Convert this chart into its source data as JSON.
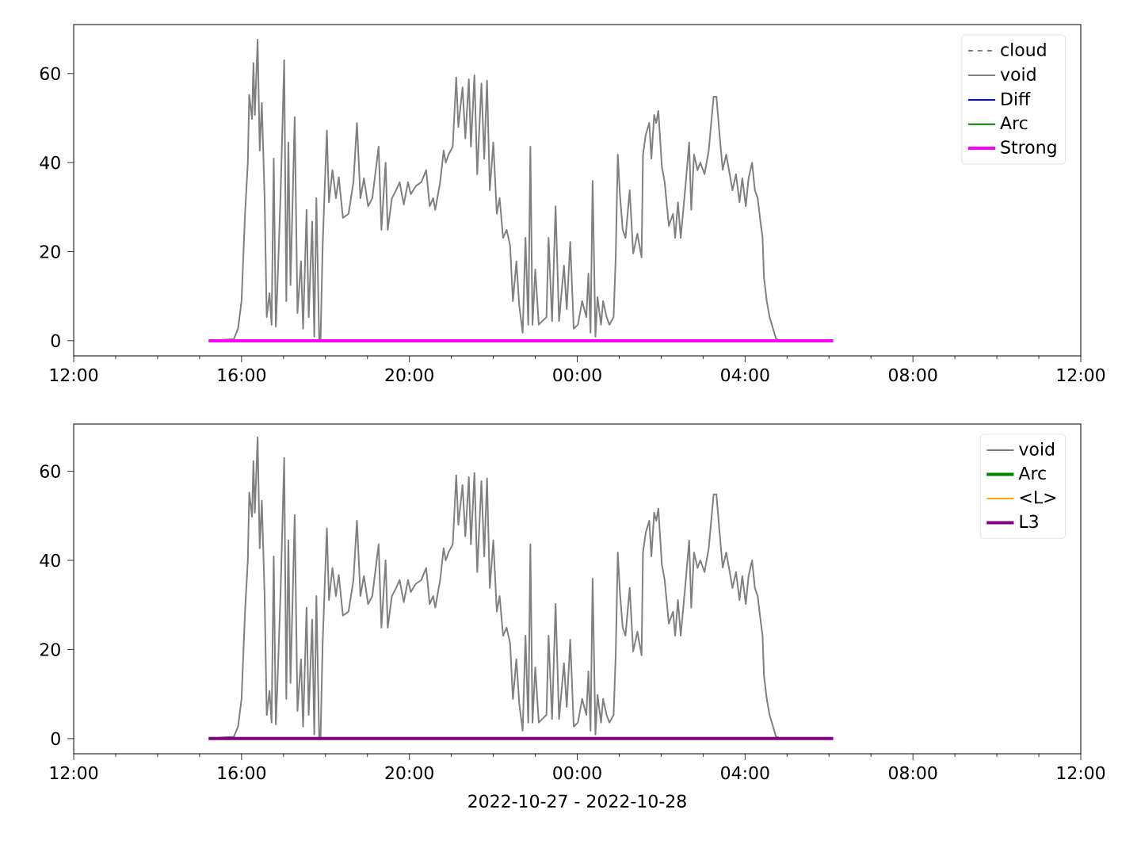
{
  "chart_data": [
    {
      "type": "line",
      "xlim": [
        "2022-10-27T12:00",
        "2022-10-28T12:00"
      ],
      "ylim": [
        -3.4,
        71
      ],
      "yticks": [
        0,
        20,
        40,
        60
      ],
      "xticks": [
        {
          "value": "2022-10-27T12:00",
          "label": "12:00"
        },
        {
          "value": "2022-10-27T16:00",
          "label": "16:00"
        },
        {
          "value": "2022-10-27T20:00",
          "label": "20:00"
        },
        {
          "value": "2022-10-28T00:00",
          "label": "00:00"
        },
        {
          "value": "2022-10-28T04:00",
          "label": "04:00"
        },
        {
          "value": "2022-10-28T08:00",
          "label": "08:00"
        },
        {
          "value": "2022-10-28T12:00",
          "label": "12:00"
        }
      ],
      "legend": "top right",
      "series": [
        {
          "name": "cloud",
          "color": "#808080",
          "line_style": "dashed"
        },
        {
          "name": "void",
          "color": "#808080",
          "x": [
            "2022-10-27T15:13",
            "2022-10-27T15:49",
            "2022-10-27T15:55",
            "2022-10-27T16:00",
            "2022-10-27T16:05",
            "2022-10-27T16:09",
            "2022-10-27T16:11",
            "2022-10-27T16:15",
            "2022-10-27T16:17",
            "2022-10-27T16:19",
            "2022-10-27T16:23",
            "2022-10-27T16:26",
            "2022-10-27T16:29",
            "2022-10-27T16:33",
            "2022-10-27T16:36",
            "2022-10-27T16:40",
            "2022-10-27T16:43",
            "2022-10-27T16:46",
            "2022-10-27T16:49",
            "2022-10-27T16:51",
            "2022-10-27T16:56",
            "2022-10-27T17:01",
            "2022-10-27T17:04",
            "2022-10-27T17:07",
            "2022-10-27T17:10",
            "2022-10-27T17:16",
            "2022-10-27T17:20",
            "2022-10-27T17:25",
            "2022-10-27T17:28",
            "2022-10-27T17:33",
            "2022-10-27T17:36",
            "2022-10-27T17:41",
            "2022-10-27T17:44",
            "2022-10-27T17:47",
            "2022-10-27T17:51",
            "2022-10-27T17:53",
            "2022-10-27T17:56",
            "2022-10-27T17:59",
            "2022-10-27T18:02",
            "2022-10-27T18:05",
            "2022-10-27T18:10",
            "2022-10-27T18:15",
            "2022-10-27T18:19",
            "2022-10-27T18:25",
            "2022-10-27T18:33",
            "2022-10-27T18:40",
            "2022-10-27T18:45",
            "2022-10-27T18:50",
            "2022-10-27T18:55",
            "2022-10-27T19:01",
            "2022-10-27T19:07",
            "2022-10-27T19:16",
            "2022-10-27T19:20",
            "2022-10-27T19:26",
            "2022-10-27T19:29",
            "2022-10-27T19:35",
            "2022-10-27T19:41",
            "2022-10-27T19:46",
            "2022-10-27T19:52",
            "2022-10-27T19:58",
            "2022-10-27T20:02",
            "2022-10-27T20:09",
            "2022-10-27T20:17",
            "2022-10-27T20:24",
            "2022-10-27T20:29",
            "2022-10-27T20:34",
            "2022-10-27T20:37",
            "2022-10-27T20:44",
            "2022-10-27T20:49",
            "2022-10-27T20:52",
            "2022-10-27T20:56",
            "2022-10-27T21:02",
            "2022-10-27T21:07",
            "2022-10-27T21:10",
            "2022-10-27T21:16",
            "2022-10-27T21:20",
            "2022-10-27T21:25",
            "2022-10-27T21:28",
            "2022-10-27T21:33",
            "2022-10-27T21:37",
            "2022-10-27T21:43",
            "2022-10-27T21:47",
            "2022-10-27T21:51",
            "2022-10-27T21:55",
            "2022-10-27T22:00",
            "2022-10-27T22:05",
            "2022-10-27T22:09",
            "2022-10-27T22:14",
            "2022-10-27T22:19",
            "2022-10-27T22:24",
            "2022-10-27T22:28",
            "2022-10-27T22:33",
            "2022-10-27T22:37",
            "2022-10-27T22:42",
            "2022-10-27T22:46",
            "2022-10-27T22:50",
            "2022-10-27T22:53",
            "2022-10-27T22:56",
            "2022-10-27T23:00",
            "2022-10-27T23:05",
            "2022-10-27T23:10",
            "2022-10-27T23:16",
            "2022-10-27T23:19",
            "2022-10-27T23:24",
            "2022-10-27T23:29",
            "2022-10-27T23:34",
            "2022-10-27T23:41",
            "2022-10-27T23:45",
            "2022-10-27T23:50",
            "2022-10-27T23:55",
            "2022-10-28T00:01",
            "2022-10-28T00:07",
            "2022-10-28T00:13",
            "2022-10-28T00:16",
            "2022-10-28T00:19",
            "2022-10-28T00:22",
            "2022-10-28T00:26",
            "2022-10-28T00:29",
            "2022-10-28T00:34",
            "2022-10-28T00:37",
            "2022-10-28T00:42",
            "2022-10-28T00:46",
            "2022-10-28T00:52",
            "2022-10-28T00:55",
            "2022-10-28T00:58",
            "2022-10-28T01:01",
            "2022-10-28T01:05",
            "2022-10-28T01:09",
            "2022-10-28T01:15",
            "2022-10-28T01:20",
            "2022-10-28T01:26",
            "2022-10-28T01:32",
            "2022-10-28T01:34",
            "2022-10-28T01:38",
            "2022-10-28T01:43",
            "2022-10-28T01:46",
            "2022-10-28T01:50",
            "2022-10-28T01:53",
            "2022-10-28T01:56",
            "2022-10-28T02:01",
            "2022-10-28T02:05",
            "2022-10-28T02:11",
            "2022-10-28T02:17",
            "2022-10-28T02:20",
            "2022-10-28T02:24",
            "2022-10-28T02:28",
            "2022-10-28T02:35",
            "2022-10-28T02:40",
            "2022-10-28T02:43",
            "2022-10-28T02:47",
            "2022-10-28T02:52",
            "2022-10-28T02:56",
            "2022-10-28T03:02",
            "2022-10-28T03:08",
            "2022-10-28T03:15",
            "2022-10-28T03:19",
            "2022-10-28T03:24",
            "2022-10-28T03:28",
            "2022-10-28T03:33",
            "2022-10-28T03:37",
            "2022-10-28T03:42",
            "2022-10-28T03:47",
            "2022-10-28T03:52",
            "2022-10-28T03:56",
            "2022-10-28T04:01",
            "2022-10-28T04:05",
            "2022-10-28T04:10",
            "2022-10-28T04:14",
            "2022-10-28T04:18",
            "2022-10-28T04:22",
            "2022-10-28T04:25",
            "2022-10-28T04:27",
            "2022-10-28T04:31",
            "2022-10-28T04:35",
            "2022-10-28T04:40",
            "2022-10-28T04:44",
            "2022-10-28T04:50"
          ],
          "values": [
            0,
            0.4,
            2.7,
            8.9,
            28.5,
            40,
            55.2,
            49.8,
            62.3,
            50.7,
            67.6,
            42.7,
            53.4,
            32,
            5.3,
            10.7,
            3.6,
            40.9,
            3.2,
            10.7,
            33.8,
            63,
            8.9,
            44.5,
            12.5,
            50.2,
            6.2,
            17.8,
            2.7,
            29.4,
            5.3,
            26.7,
            0.9,
            32,
            0.4,
            0.4,
            21.4,
            34.7,
            47.2,
            31.1,
            38.3,
            32,
            36.7,
            27.6,
            28.5,
            35.6,
            48.9,
            32,
            36.5,
            30.2,
            32,
            43.6,
            24.9,
            40,
            24.9,
            32,
            33.8,
            35.6,
            30.6,
            35.6,
            32.9,
            34.7,
            35.6,
            38.3,
            30.2,
            32,
            29.4,
            35.6,
            42.7,
            40,
            41.8,
            43.6,
            59.1,
            48,
            56.9,
            45.4,
            58.7,
            43.6,
            59.6,
            37.4,
            57.8,
            40.9,
            58.4,
            33.8,
            44.5,
            28.5,
            32,
            23.1,
            24.9,
            21.4,
            8.9,
            17.8,
            8,
            1.8,
            23.1,
            3.6,
            43.6,
            3.6,
            16,
            3.6,
            4.4,
            5.3,
            23.1,
            4.4,
            30.2,
            4.4,
            16.9,
            7.1,
            22.2,
            2.7,
            3.6,
            8.9,
            5.3,
            15.1,
            1.8,
            35.9,
            0.9,
            9.8,
            3.6,
            8.9,
            5.3,
            3.6,
            5.3,
            18.7,
            41.8,
            32.9,
            24.9,
            23.1,
            33.8,
            19.6,
            24,
            18.7,
            41.8,
            46.3,
            48.9,
            40.9,
            50.7,
            48.9,
            51.6,
            39.1,
            35.6,
            25.8,
            28.5,
            23.1,
            31.1,
            23.1,
            35.2,
            44.5,
            29.4,
            41.8,
            38.3,
            40,
            37.4,
            42.7,
            54.8,
            54.8,
            45.4,
            38.4,
            41.8,
            38.3,
            33.8,
            37.4,
            31.1,
            36.5,
            30.2,
            36.5,
            40,
            33.8,
            32,
            26.7,
            23.1,
            14.2,
            8.9,
            5.3,
            2.7,
            0.5,
            0
          ]
        },
        {
          "name": "Diff",
          "color": "#0000ff"
        },
        {
          "name": "Arc",
          "color": "#008000"
        },
        {
          "name": "Strong",
          "color": "#ff00ff",
          "x": [
            "2022-10-27T15:13",
            "2022-10-28T06:06"
          ],
          "values": [
            0,
            0
          ]
        }
      ]
    },
    {
      "type": "line",
      "xlim": [
        "2022-10-27T12:00",
        "2022-10-28T12:00"
      ],
      "ylim": [
        -3.4,
        70.6
      ],
      "yticks": [
        0,
        20,
        40,
        60
      ],
      "xticks": [
        {
          "value": "2022-10-27T12:00",
          "label": "12:00"
        },
        {
          "value": "2022-10-27T16:00",
          "label": "16:00"
        },
        {
          "value": "2022-10-27T20:00",
          "label": "20:00"
        },
        {
          "value": "2022-10-28T00:00",
          "label": "00:00"
        },
        {
          "value": "2022-10-28T04:00",
          "label": "04:00"
        },
        {
          "value": "2022-10-28T08:00",
          "label": "08:00"
        },
        {
          "value": "2022-10-28T12:00",
          "label": "12:00"
        }
      ],
      "xlabel": "2022-10-27 - 2022-10-28",
      "legend": "top right",
      "series": [
        {
          "name": "void",
          "color": "#808080",
          "x": [
            "2022-10-27T15:13",
            "2022-10-27T15:49",
            "2022-10-27T15:55",
            "2022-10-27T16:00",
            "2022-10-27T16:05",
            "2022-10-27T16:09",
            "2022-10-27T16:11",
            "2022-10-27T16:15",
            "2022-10-27T16:17",
            "2022-10-27T16:19",
            "2022-10-27T16:23",
            "2022-10-27T16:26",
            "2022-10-27T16:29",
            "2022-10-27T16:33",
            "2022-10-27T16:36",
            "2022-10-27T16:40",
            "2022-10-27T16:43",
            "2022-10-27T16:46",
            "2022-10-27T16:49",
            "2022-10-27T16:51",
            "2022-10-27T16:56",
            "2022-10-27T17:01",
            "2022-10-27T17:04",
            "2022-10-27T17:07",
            "2022-10-27T17:10",
            "2022-10-27T17:16",
            "2022-10-27T17:20",
            "2022-10-27T17:25",
            "2022-10-27T17:28",
            "2022-10-27T17:33",
            "2022-10-27T17:36",
            "2022-10-27T17:41",
            "2022-10-27T17:44",
            "2022-10-27T17:47",
            "2022-10-27T17:51",
            "2022-10-27T17:53",
            "2022-10-27T17:56",
            "2022-10-27T17:59",
            "2022-10-27T18:02",
            "2022-10-27T18:05",
            "2022-10-27T18:10",
            "2022-10-27T18:15",
            "2022-10-27T18:19",
            "2022-10-27T18:25",
            "2022-10-27T18:33",
            "2022-10-27T18:40",
            "2022-10-27T18:45",
            "2022-10-27T18:50",
            "2022-10-27T18:55",
            "2022-10-27T19:01",
            "2022-10-27T19:07",
            "2022-10-27T19:16",
            "2022-10-27T19:20",
            "2022-10-27T19:26",
            "2022-10-27T19:29",
            "2022-10-27T19:35",
            "2022-10-27T19:41",
            "2022-10-27T19:46",
            "2022-10-27T19:52",
            "2022-10-27T19:58",
            "2022-10-27T20:02",
            "2022-10-27T20:09",
            "2022-10-27T20:17",
            "2022-10-27T20:24",
            "2022-10-27T20:29",
            "2022-10-27T20:34",
            "2022-10-27T20:37",
            "2022-10-27T20:44",
            "2022-10-27T20:49",
            "2022-10-27T20:52",
            "2022-10-27T20:56",
            "2022-10-27T21:02",
            "2022-10-27T21:07",
            "2022-10-27T21:10",
            "2022-10-27T21:16",
            "2022-10-27T21:20",
            "2022-10-27T21:25",
            "2022-10-27T21:28",
            "2022-10-27T21:33",
            "2022-10-27T21:37",
            "2022-10-27T21:43",
            "2022-10-27T21:47",
            "2022-10-27T21:51",
            "2022-10-27T21:55",
            "2022-10-27T22:00",
            "2022-10-27T22:05",
            "2022-10-27T22:09",
            "2022-10-27T22:14",
            "2022-10-27T22:19",
            "2022-10-27T22:24",
            "2022-10-27T22:28",
            "2022-10-27T22:33",
            "2022-10-27T22:37",
            "2022-10-27T22:42",
            "2022-10-27T22:46",
            "2022-10-27T22:50",
            "2022-10-27T22:53",
            "2022-10-27T22:56",
            "2022-10-27T23:00",
            "2022-10-27T23:05",
            "2022-10-27T23:10",
            "2022-10-27T23:16",
            "2022-10-27T23:19",
            "2022-10-27T23:24",
            "2022-10-27T23:29",
            "2022-10-27T23:34",
            "2022-10-27T23:41",
            "2022-10-27T23:45",
            "2022-10-27T23:50",
            "2022-10-27T23:55",
            "2022-10-28T00:01",
            "2022-10-28T00:07",
            "2022-10-28T00:13",
            "2022-10-28T00:16",
            "2022-10-28T00:19",
            "2022-10-28T00:22",
            "2022-10-28T00:26",
            "2022-10-28T00:29",
            "2022-10-28T00:34",
            "2022-10-28T00:37",
            "2022-10-28T00:42",
            "2022-10-28T00:46",
            "2022-10-28T00:52",
            "2022-10-28T00:55",
            "2022-10-28T00:58",
            "2022-10-28T01:01",
            "2022-10-28T01:05",
            "2022-10-28T01:09",
            "2022-10-28T01:15",
            "2022-10-28T01:20",
            "2022-10-28T01:26",
            "2022-10-28T01:32",
            "2022-10-28T01:34",
            "2022-10-28T01:38",
            "2022-10-28T01:43",
            "2022-10-28T01:46",
            "2022-10-28T01:50",
            "2022-10-28T01:53",
            "2022-10-28T01:56",
            "2022-10-28T02:01",
            "2022-10-28T02:05",
            "2022-10-28T02:11",
            "2022-10-28T02:17",
            "2022-10-28T02:20",
            "2022-10-28T02:24",
            "2022-10-28T02:28",
            "2022-10-28T02:35",
            "2022-10-28T02:40",
            "2022-10-28T02:43",
            "2022-10-28T02:47",
            "2022-10-28T02:52",
            "2022-10-28T02:56",
            "2022-10-28T03:02",
            "2022-10-28T03:08",
            "2022-10-28T03:15",
            "2022-10-28T03:19",
            "2022-10-28T03:24",
            "2022-10-28T03:28",
            "2022-10-28T03:33",
            "2022-10-28T03:37",
            "2022-10-28T03:42",
            "2022-10-28T03:47",
            "2022-10-28T03:52",
            "2022-10-28T03:56",
            "2022-10-28T04:01",
            "2022-10-28T04:05",
            "2022-10-28T04:10",
            "2022-10-28T04:14",
            "2022-10-28T04:18",
            "2022-10-28T04:22",
            "2022-10-28T04:25",
            "2022-10-28T04:27",
            "2022-10-28T04:31",
            "2022-10-28T04:35",
            "2022-10-28T04:40",
            "2022-10-28T04:44",
            "2022-10-28T04:50"
          ],
          "values": [
            0,
            0.4,
            2.7,
            8.9,
            28.5,
            40,
            55.2,
            49.8,
            62.3,
            50.7,
            67.6,
            42.7,
            53.4,
            32,
            5.3,
            10.7,
            3.6,
            40.9,
            3.2,
            10.7,
            33.8,
            63,
            8.9,
            44.5,
            12.5,
            50.2,
            6.2,
            17.8,
            2.7,
            29.4,
            5.3,
            26.7,
            0.9,
            32,
            0.4,
            0.4,
            21.4,
            34.7,
            47.2,
            31.1,
            38.3,
            32,
            36.7,
            27.6,
            28.5,
            35.6,
            48.9,
            32,
            36.5,
            30.2,
            32,
            43.6,
            24.9,
            40,
            24.9,
            32,
            33.8,
            35.6,
            30.6,
            35.6,
            32.9,
            34.7,
            35.6,
            38.3,
            30.2,
            32,
            29.4,
            35.6,
            42.7,
            40,
            41.8,
            43.6,
            59.1,
            48,
            56.9,
            45.4,
            58.7,
            43.6,
            59.6,
            37.4,
            57.8,
            40.9,
            58.4,
            33.8,
            44.5,
            28.5,
            32,
            23.1,
            24.9,
            21.4,
            8.9,
            17.8,
            8,
            1.8,
            23.1,
            3.6,
            43.6,
            3.6,
            16,
            3.6,
            4.4,
            5.3,
            23.1,
            4.4,
            30.2,
            4.4,
            16.9,
            7.1,
            22.2,
            2.7,
            3.6,
            8.9,
            5.3,
            15.1,
            1.8,
            35.9,
            0.9,
            9.8,
            3.6,
            8.9,
            5.3,
            3.6,
            5.3,
            18.7,
            41.8,
            32.9,
            24.9,
            23.1,
            33.8,
            19.6,
            24,
            18.7,
            41.8,
            46.3,
            48.9,
            40.9,
            50.7,
            48.9,
            51.6,
            39.1,
            35.6,
            25.8,
            28.5,
            23.1,
            31.1,
            23.1,
            35.2,
            44.5,
            29.4,
            41.8,
            38.3,
            40,
            37.4,
            42.7,
            54.8,
            54.8,
            45.4,
            38.4,
            41.8,
            38.3,
            33.8,
            37.4,
            31.1,
            36.5,
            30.2,
            36.5,
            40,
            33.8,
            32,
            26.7,
            23.1,
            14.2,
            8.9,
            5.3,
            2.7,
            0.5,
            0
          ]
        },
        {
          "name": "Arc",
          "color": "#008000"
        },
        {
          "name": "<L>",
          "color": "#ffa500"
        },
        {
          "name": "L3",
          "color": "#800080",
          "x": [
            "2022-10-27T15:13",
            "2022-10-28T06:06"
          ],
          "values": [
            0,
            0
          ]
        }
      ]
    }
  ]
}
